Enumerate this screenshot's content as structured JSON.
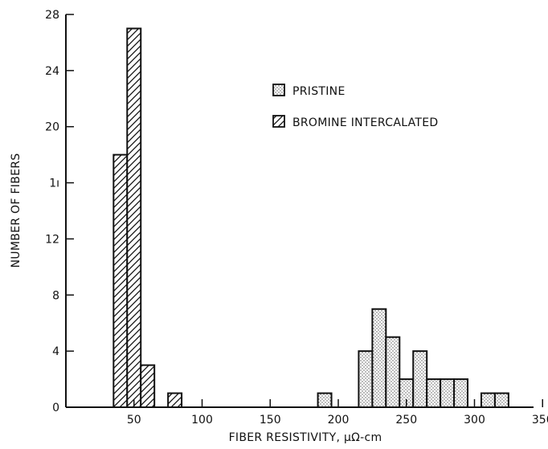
{
  "chart_data": {
    "type": "bar",
    "title": "",
    "xlabel": "FIBER RESISTIVITY, μΩ-cm",
    "ylabel": "NUMBER OF FIBERS",
    "xlim": [
      0,
      350
    ],
    "ylim": [
      0,
      28
    ],
    "x_ticks": [
      50,
      100,
      150,
      200,
      250,
      300,
      350
    ],
    "x_tick_labels": [
      "50",
      "100",
      "150",
      "200",
      "250",
      "300",
      "350"
    ],
    "y_ticks": [
      0,
      4,
      8,
      12,
      16,
      20,
      24,
      28
    ],
    "y_tick_labels": [
      "0",
      "4",
      "8",
      "12",
      "1ı",
      "20",
      "24",
      "28"
    ],
    "grid": false,
    "legend_position": "top-right",
    "series": [
      {
        "name": "PRISTINE",
        "fill": "stippled",
        "bins": [
          {
            "x0": 185,
            "x1": 195,
            "count": 1
          },
          {
            "x0": 215,
            "x1": 225,
            "count": 4
          },
          {
            "x0": 225,
            "x1": 235,
            "count": 7
          },
          {
            "x0": 235,
            "x1": 245,
            "count": 5
          },
          {
            "x0": 245,
            "x1": 255,
            "count": 2
          },
          {
            "x0": 255,
            "x1": 265,
            "count": 4
          },
          {
            "x0": 265,
            "x1": 275,
            "count": 2
          },
          {
            "x0": 275,
            "x1": 285,
            "count": 2
          },
          {
            "x0": 285,
            "x1": 295,
            "count": 2
          },
          {
            "x0": 305,
            "x1": 315,
            "count": 1
          },
          {
            "x0": 315,
            "x1": 325,
            "count": 1
          }
        ]
      },
      {
        "name": "BROMINE INTERCALATED",
        "fill": "hatched",
        "bins": [
          {
            "x0": 35,
            "x1": 45,
            "count": 18
          },
          {
            "x0": 45,
            "x1": 55,
            "count": 27
          },
          {
            "x0": 55,
            "x1": 65,
            "count": 3
          },
          {
            "x0": 75,
            "x1": 85,
            "count": 1
          }
        ]
      }
    ]
  }
}
